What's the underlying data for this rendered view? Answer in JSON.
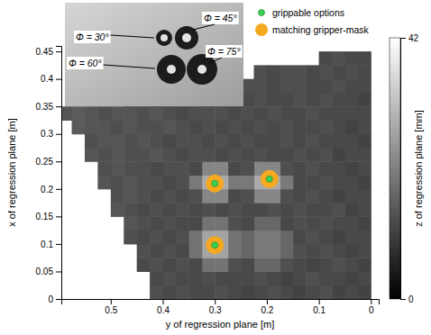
{
  "chart_data": {
    "type": "heatmap",
    "xlabel": "y of regression plane [m]",
    "ylabel": "x of regression plane [m]",
    "xlim": [
      0.595,
      -0.015
    ],
    "xticks": [
      0.5,
      0.4,
      0.3,
      0.2,
      0.1,
      0
    ],
    "ylim": [
      0,
      0.46
    ],
    "yticks": [
      0,
      0.05,
      0.1,
      0.15,
      0.2,
      0.25,
      0.3,
      0.35,
      0.4,
      0.45
    ],
    "grid": false,
    "legend": "top-right",
    "cell_x": [
      0.0125,
      0.0375,
      0.0625,
      0.0875,
      0.1125,
      0.1375,
      0.1625,
      0.1875,
      0.2125,
      0.2375,
      0.2625,
      0.2875,
      0.3125,
      0.3375,
      0.3625,
      0.3875,
      0.4125,
      0.4375,
      0.4625,
      0.4875,
      0.5125,
      0.5375,
      0.5625,
      0.5875
    ],
    "cell_y": [
      0.0125,
      0.0375,
      0.0625,
      0.0875,
      0.1125,
      0.1375,
      0.1625,
      0.1875,
      0.2125,
      0.2375,
      0.2625,
      0.2875,
      0.3125,
      0.3375,
      0.3625,
      0.3875,
      0.4125,
      0.4375
    ],
    "cells": [
      [
        11,
        12,
        11,
        13,
        12,
        11,
        12,
        13,
        12,
        11,
        12,
        13,
        12,
        12,
        13,
        12,
        13,
        null,
        null,
        null,
        null,
        null,
        null,
        null
      ],
      [
        12,
        11,
        12,
        12,
        13,
        12,
        11,
        12,
        13,
        12,
        12,
        12,
        13,
        12,
        12,
        13,
        12,
        null,
        null,
        null,
        null,
        null,
        null,
        null
      ],
      [
        11,
        12,
        13,
        12,
        11,
        12,
        13,
        17,
        17,
        12,
        13,
        19,
        19,
        12,
        13,
        12,
        13,
        12,
        null,
        null,
        null,
        null,
        null,
        null
      ],
      [
        12,
        11,
        12,
        13,
        12,
        13,
        17,
        20,
        20,
        17,
        19,
        27,
        27,
        19,
        12,
        13,
        12,
        13,
        null,
        null,
        null,
        null,
        null,
        null
      ],
      [
        12,
        12,
        11,
        12,
        13,
        12,
        17,
        20,
        20,
        17,
        19,
        27,
        27,
        19,
        13,
        12,
        13,
        12,
        13,
        null,
        null,
        null,
        null,
        null
      ],
      [
        11,
        12,
        12,
        13,
        12,
        13,
        12,
        17,
        17,
        12,
        13,
        19,
        19,
        12,
        12,
        13,
        12,
        13,
        14,
        null,
        null,
        null,
        null,
        null
      ],
      [
        12,
        11,
        13,
        12,
        12,
        13,
        12,
        13,
        12,
        12,
        13,
        12,
        13,
        12,
        13,
        12,
        13,
        12,
        13,
        14,
        null,
        null,
        null,
        null
      ],
      [
        12,
        12,
        11,
        12,
        13,
        12,
        13,
        22,
        22,
        13,
        12,
        22,
        22,
        13,
        12,
        13,
        12,
        13,
        14,
        13,
        null,
        null,
        null,
        null
      ],
      [
        11,
        12,
        12,
        13,
        12,
        12,
        20,
        28,
        28,
        20,
        20,
        28,
        28,
        20,
        13,
        12,
        13,
        13,
        14,
        13,
        14,
        null,
        null,
        null
      ],
      [
        12,
        11,
        12,
        12,
        13,
        12,
        13,
        22,
        22,
        13,
        12,
        22,
        22,
        12,
        13,
        13,
        12,
        13,
        13,
        14,
        13,
        null,
        null,
        null
      ],
      [
        12,
        12,
        11,
        13,
        12,
        13,
        12,
        12,
        13,
        12,
        13,
        12,
        13,
        13,
        12,
        13,
        14,
        13,
        13,
        14,
        13,
        14,
        null,
        null
      ],
      [
        11,
        12,
        12,
        12,
        13,
        12,
        13,
        12,
        12,
        13,
        12,
        13,
        12,
        13,
        13,
        12,
        13,
        14,
        13,
        14,
        14,
        13,
        null,
        null
      ],
      [
        12,
        11,
        12,
        13,
        12,
        12,
        13,
        12,
        13,
        12,
        13,
        12,
        13,
        12,
        13,
        14,
        13,
        13,
        14,
        13,
        14,
        14,
        15,
        null
      ],
      [
        12,
        12,
        12,
        12,
        13,
        12,
        12,
        13,
        12,
        13,
        12,
        13,
        13,
        13,
        12,
        13,
        14,
        13,
        14,
        14,
        13,
        14,
        15,
        14
      ],
      [
        11,
        12,
        12,
        13,
        12,
        13,
        12,
        12,
        13,
        12,
        13,
        13,
        12,
        13,
        14,
        13,
        13,
        14,
        14,
        null,
        null,
        null,
        null,
        null
      ],
      [
        12,
        12,
        13,
        12,
        12,
        13,
        13,
        12,
        13,
        13,
        12,
        14,
        13,
        14,
        null,
        null,
        null,
        null,
        null,
        null,
        null,
        null,
        null,
        null
      ],
      [
        12,
        13,
        12,
        13,
        12,
        13,
        13,
        12,
        13,
        null,
        null,
        null,
        null,
        null,
        null,
        null,
        null,
        null,
        null,
        null,
        null,
        null,
        null,
        null
      ],
      [
        12,
        12,
        13,
        12,
        null,
        null,
        null,
        null,
        null,
        null,
        null,
        null,
        null,
        null,
        null,
        null,
        null,
        null,
        null,
        null,
        null,
        null,
        null,
        null
      ]
    ],
    "colorbar_label": "z of regression plane [mm]",
    "colorbar_lim": [
      0,
      42
    ],
    "colorbar_ticks": [
      0,
      42
    ],
    "series": [
      {
        "name": "matching gripper-mask",
        "type": "scatter",
        "marker": "circle",
        "color": "#f4a91f",
        "x": [
          0.3,
          0.195,
          0.3
        ],
        "values": [
          0.21,
          0.218,
          0.098
        ]
      },
      {
        "name": "grippable options",
        "type": "scatter",
        "marker": "dot",
        "color": "#39d353",
        "x": [
          0.3,
          0.195,
          0.3
        ],
        "values": [
          0.21,
          0.218,
          0.098
        ]
      }
    ],
    "annotations": [
      "Φ = 30°",
      "Φ = 45°",
      "Φ = 60°",
      "Φ = 75°"
    ]
  }
}
